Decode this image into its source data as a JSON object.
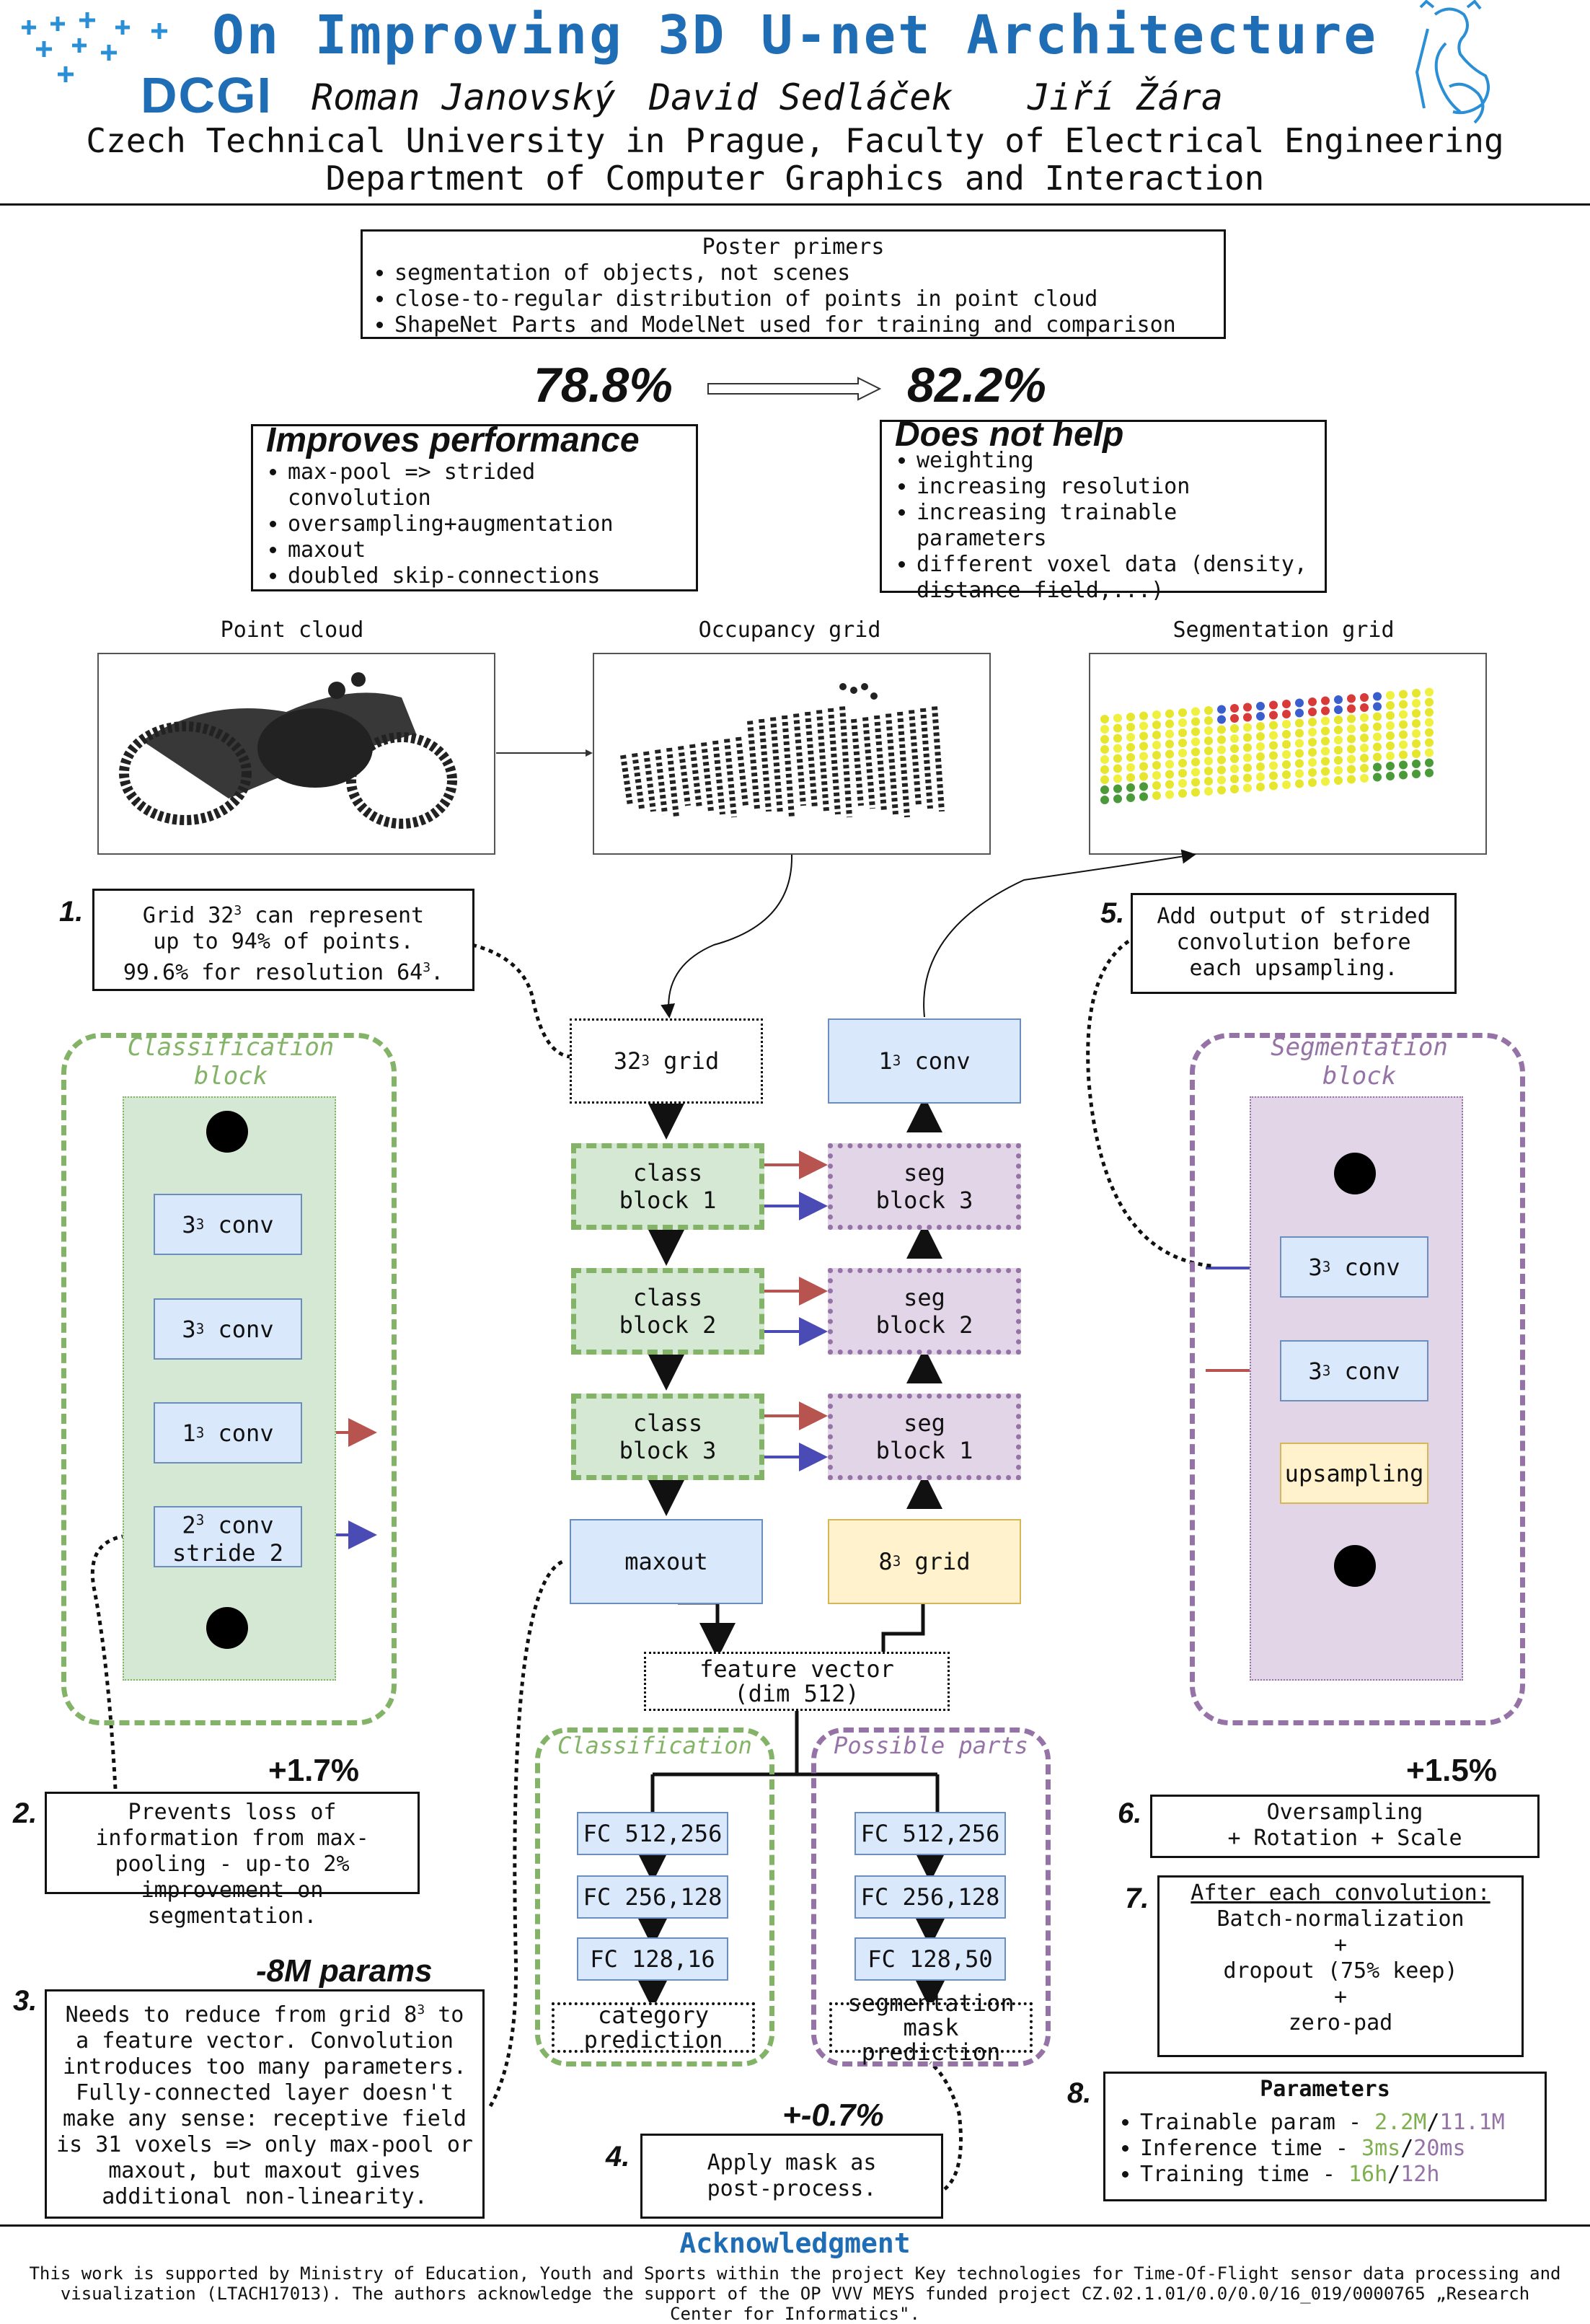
{
  "header": {
    "title": "On Improving 3D U-net Architecture",
    "logo_left": "DCGI",
    "authors": [
      "Roman Janovský",
      "David Sedláček",
      "Jiří Žára"
    ],
    "affiliation_1": "Czech Technical University in Prague, Faculty of Electrical Engineering",
    "affiliation_2": "Department of Computer Graphics and Interaction"
  },
  "primers": {
    "title": "Poster primers",
    "items": [
      "segmentation of objects, not scenes",
      "close-to-regular distribution of points in point cloud",
      "ShapeNet Parts and ModelNet used for training and comparison"
    ]
  },
  "results": {
    "before": "78.8%",
    "after": "82.2%"
  },
  "improves": {
    "title": "Improves performance",
    "items": [
      "max-pool => strided convolution",
      "oversampling+augmentation",
      "maxout",
      "doubled skip-connections"
    ]
  },
  "not_help": {
    "title": "Does not help",
    "items": [
      "weighting",
      "increasing resolution",
      "increasing trainable parameters",
      "different voxel data (density, distance field,...)"
    ]
  },
  "pipeline": {
    "point_cloud": "Point cloud",
    "occupancy_grid": "Occupancy grid",
    "segmentation_grid": "Segmentation grid"
  },
  "notes": {
    "n1_num": "1.",
    "n1_a": "Grid 32",
    "n1_a_sup": "3",
    "n1_a2": " can represent",
    "n1_b": "up to 94% of points.",
    "n1_c": "99.6% for resolution 64",
    "n1_c_sup": "3",
    "n1_c2": ".",
    "n5_num": "5.",
    "n5": "Add output of strided convolution before each upsampling.",
    "n2_num": "2.",
    "n2_gain": "+1.7%",
    "n2": "Prevents loss of information from max-pooling - up-to 2% improvement on segmentation.",
    "n3_num": "3.",
    "n3_gain": "-8M params",
    "n3_a": "Needs to reduce from grid 8",
    "n3_a_sup": "3",
    "n3_a2": " to",
    "n3_b": "a feature vector. Convolution introduces too many parameters. Fully-connected layer doesn't make any sense: receptive field is 31 voxels => only max-pool or maxout, but maxout gives additional non-linearity.",
    "n4_num": "4.",
    "n4_gain": "+-0.7%",
    "n4": "Apply mask as post-process.",
    "n6_num": "6.",
    "n6_gain": "+1.5%",
    "n6_a": "Oversampling",
    "n6_b": "+ Rotation + Scale",
    "n7_num": "7.",
    "n7_head": "After each convolution:",
    "n7_lines": [
      "Batch-normalization",
      "+",
      "dropout (75% keep)",
      "+",
      "zero-pad"
    ],
    "n8_num": "8."
  },
  "params": {
    "title": "Parameters",
    "rows": [
      {
        "label": "Trainable param - ",
        "a": "2.2M",
        "b": "11.1M"
      },
      {
        "label": "Inference time - ",
        "a": "3ms",
        "b": "20ms"
      },
      {
        "label": "Training time - ",
        "a": "16h",
        "b": "12h"
      }
    ],
    "color_a": "#7fb04f",
    "color_b": "#9673a6"
  },
  "class_block": {
    "label": "Classification block",
    "conv1": "conv",
    "conv1_base": "3",
    "conv1_sup": "3",
    "conv2": "conv",
    "conv2_base": "3",
    "conv2_sup": "3",
    "conv3": "conv",
    "conv3_base": "1",
    "conv3_sup": "3",
    "conv4_a": "conv",
    "conv4_base": "2",
    "conv4_sup": "3",
    "conv4_b": "stride 2"
  },
  "seg_block": {
    "label": "Segmentation block",
    "conv1": "conv",
    "conv1_base": "3",
    "conv1_sup": "3",
    "conv2": "conv",
    "conv2_base": "3",
    "conv2_sup": "3",
    "up": "upsampling"
  },
  "network": {
    "grid32_base": "32",
    "grid32_sup": "3",
    "grid32": "grid",
    "conv_out_base": "1",
    "conv_out_sup": "3",
    "conv_out": "conv",
    "class_blocks": [
      [
        "class",
        "block 1"
      ],
      [
        "class",
        "block 2"
      ],
      [
        "class",
        "block 3"
      ]
    ],
    "seg_blocks": [
      [
        "seg",
        "block 3"
      ],
      [
        "seg",
        "block 2"
      ],
      [
        "seg",
        "block 1"
      ]
    ],
    "maxout": "maxout",
    "grid8_base": "8",
    "grid8_sup": "3",
    "grid8": "grid",
    "feature_a": "feature vector",
    "feature_b": "(dim 512)",
    "cls_label": "Classification",
    "cls_fc": [
      "FC 512,256",
      "FC 256,128",
      "FC 128,16"
    ],
    "cls_out": [
      "category",
      "prediction"
    ],
    "parts_label": "Possible parts",
    "parts_fc": [
      "FC 512,256",
      "FC 256,128",
      "FC 128,50"
    ],
    "parts_out": [
      "segmentation",
      "mask prediction"
    ]
  },
  "ack": {
    "title": "Acknowledgment",
    "text": "This work is supported by Ministry of Education, Youth and Sports within the project Key technologies for Time-Of-Flight sensor data processing and visualization (LTACH17013). The authors acknowledge the support of the OP VVV MEYS funded project CZ.02.1.01/0.0/0.0/16_019/0000765 „Research Center for Informatics\"."
  },
  "colors": {
    "title": "#1e6db5",
    "red_arrow": "#b85450",
    "blue_arrow": "#4b4bb5",
    "green_border": "#82b366",
    "purple_border": "#9673a6"
  }
}
